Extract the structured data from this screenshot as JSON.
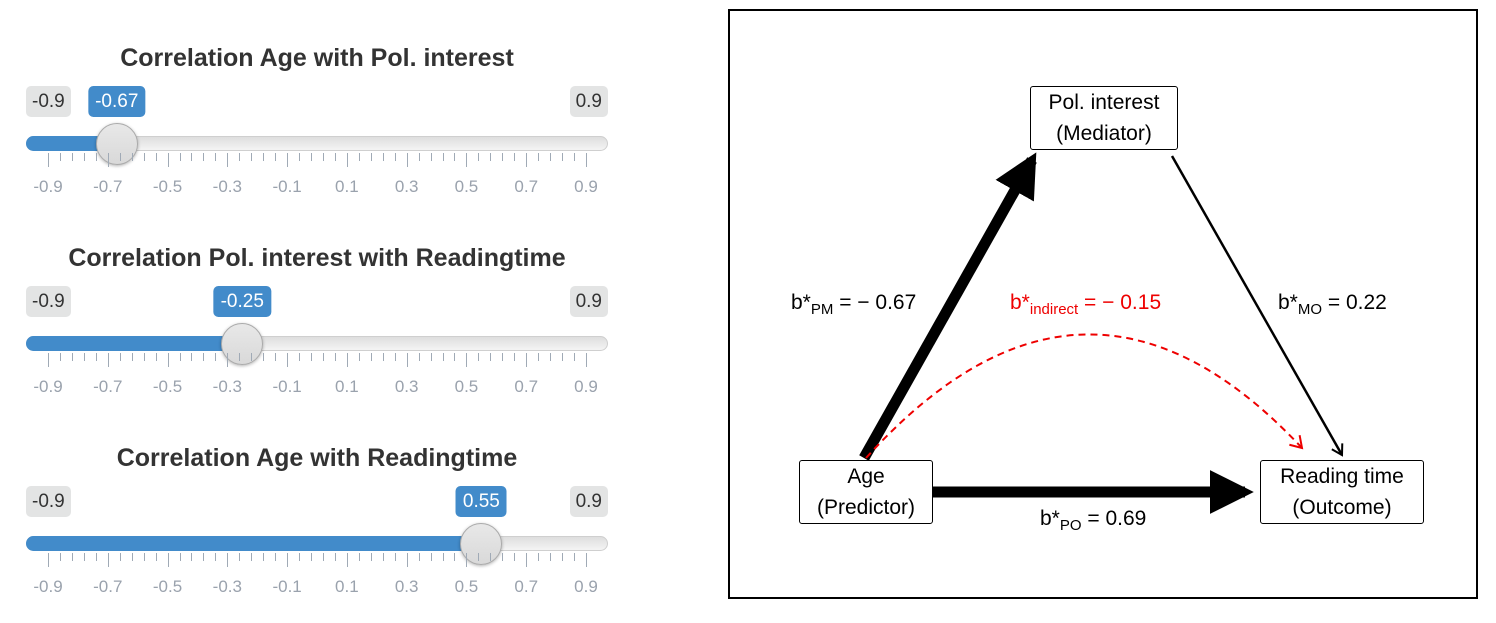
{
  "sliders": [
    {
      "title": "Correlation Age with Pol. interest",
      "min_label": "-0.9",
      "max_label": "0.9",
      "min": -0.9,
      "max": 0.9,
      "value": -0.67,
      "value_label": "-0.67",
      "tick_labels": [
        "-0.9",
        "-0.7",
        "-0.5",
        "-0.3",
        "-0.1",
        "0.1",
        "0.3",
        "0.5",
        "0.7",
        "0.9"
      ]
    },
    {
      "title": "Correlation Pol. interest with Readingtime",
      "min_label": "-0.9",
      "max_label": "0.9",
      "min": -0.9,
      "max": 0.9,
      "value": -0.25,
      "value_label": "-0.25",
      "tick_labels": [
        "-0.9",
        "-0.7",
        "-0.5",
        "-0.3",
        "-0.1",
        "0.1",
        "0.3",
        "0.5",
        "0.7",
        "0.9"
      ]
    },
    {
      "title": "Correlation Age with Readingtime",
      "min_label": "-0.9",
      "max_label": "0.9",
      "min": -0.9,
      "max": 0.9,
      "value": 0.55,
      "value_label": "0.55",
      "tick_labels": [
        "-0.9",
        "-0.7",
        "-0.5",
        "-0.3",
        "-0.1",
        "0.1",
        "0.3",
        "0.5",
        "0.7",
        "0.9"
      ]
    }
  ],
  "diagram": {
    "nodes": {
      "mediator": [
        "Pol. interest",
        "(Mediator)"
      ],
      "predictor": [
        "Age",
        "(Predictor)"
      ],
      "outcome": [
        "Reading time",
        "(Outcome)"
      ]
    },
    "paths": {
      "pm": {
        "prefix": "b*",
        "sub": "PM",
        "value": " = − 0.67"
      },
      "mo": {
        "prefix": "b*",
        "sub": "MO",
        "value": " = 0.22"
      },
      "po": {
        "prefix": "b*",
        "sub": "PO",
        "value": " = 0.69"
      },
      "indirect": {
        "prefix": "b*",
        "sub": "indirect",
        "value": " = − 0.15"
      }
    },
    "colors": {
      "accent": "#428bca",
      "indirect": "#ee0000",
      "arrows": "#000000"
    }
  }
}
